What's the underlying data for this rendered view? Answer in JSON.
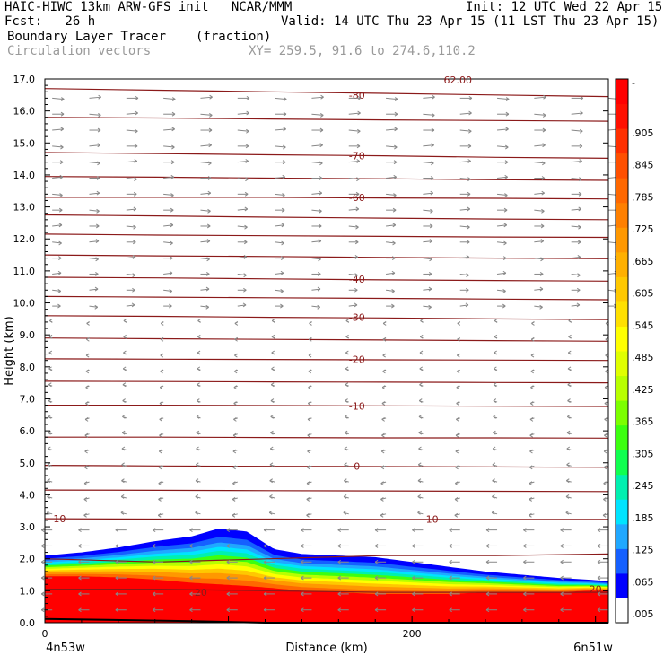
{
  "header": {
    "line1_left": "HAIC-HIWC 13km ARW-GFS init   NCAR/MMM",
    "line1_right": "Init: 12 UTC Wed 22 Apr 15",
    "line2_left": "Fcst:   26 h",
    "line2_right": "Valid: 14 UTC Thu 23 Apr 15 (11 LST Thu 23 Apr 15)",
    "line3_field": "Boundary Layer Tracer",
    "line3_units": "(fraction)",
    "line4_vectors": "Circulation vectors",
    "line4_xy": "XY= 259.5, 91.6 to 274.6,110.2"
  },
  "colors": {
    "contour": "#8b1a1a",
    "vector": "#888888",
    "bar_colors": [
      "#ffffff",
      "#0000ff",
      "#1560ff",
      "#20a8ff",
      "#00e4ff",
      "#00f0b0",
      "#10ff50",
      "#3cff10",
      "#7cff00",
      "#b8ff00",
      "#e0ff00",
      "#ffff00",
      "#ffe000",
      "#ffc800",
      "#ffb000",
      "#ff9800",
      "#ff8000",
      "#ff6800",
      "#ff5000",
      "#ff3000",
      "#ff1000",
      "#ff0000"
    ]
  },
  "chart_data": {
    "type": "heatmap",
    "title": "Boundary Layer Tracer",
    "units": "(fraction)",
    "xlabel": "Distance (km)",
    "ylabel": "Height (km)",
    "xlim": [
      0,
      307
    ],
    "ylim": [
      0,
      17
    ],
    "x_ticks": [
      0,
      200
    ],
    "x_tick_labels": [
      "0",
      "200"
    ],
    "x_end_labels": [
      "4n53w",
      "6n51w"
    ],
    "y_ticks": [
      0,
      1,
      2,
      3,
      4,
      5,
      6,
      7,
      8,
      9,
      10,
      11,
      12,
      13,
      14,
      15,
      16,
      17
    ],
    "y_tick_labels": [
      "0.0",
      "1.0",
      "2.0",
      "3.0",
      "4.0",
      "5.0",
      "6.0",
      "7.0",
      "8.0",
      "9.0",
      "10.0",
      "11.0",
      "12.0",
      "13.0",
      "14.0",
      "15.0",
      "16.0",
      "17.0"
    ],
    "colorbar_labels": [
      ".005",
      ".065",
      ".125",
      ".185",
      ".245",
      ".305",
      ".365",
      ".425",
      ".485",
      ".545",
      ".605",
      ".665",
      ".725",
      ".785",
      ".845",
      ".905",
      "-"
    ],
    "tracer_top_profile": {
      "x": [
        0,
        20,
        40,
        60,
        80,
        95,
        110,
        125,
        140,
        160,
        180,
        200,
        220,
        240,
        260,
        280,
        295,
        307
      ],
      "top_km": [
        2.1,
        2.2,
        2.35,
        2.55,
        2.7,
        2.95,
        2.85,
        2.3,
        2.15,
        2.1,
        2.05,
        1.9,
        1.75,
        1.6,
        1.5,
        1.4,
        1.35,
        1.3
      ],
      "red_km": [
        1.45,
        1.45,
        1.42,
        1.35,
        1.25,
        1.2,
        1.15,
        1.08,
        1.0,
        0.95,
        0.9,
        0.9,
        0.9,
        0.95,
        0.95,
        0.95,
        1.0,
        1.0
      ]
    },
    "contours": [
      {
        "label": "-80",
        "y": [
          16.7,
          16.65,
          16.6,
          16.55,
          16.5,
          16.45
        ]
      },
      {
        "label": "",
        "y": [
          15.8,
          15.78,
          15.75,
          15.72,
          15.7,
          15.68
        ]
      },
      {
        "label": "-70",
        "y": [
          14.7,
          14.67,
          14.63,
          14.6,
          14.55,
          14.52
        ]
      },
      {
        "label": "",
        "y": [
          13.95,
          13.93,
          13.9,
          13.88,
          13.85,
          13.83
        ]
      },
      {
        "label": "-60",
        "y": [
          13.3,
          13.3,
          13.3,
          13.28,
          13.27,
          13.25
        ]
      },
      {
        "label": "",
        "y": [
          12.75,
          12.72,
          12.68,
          12.65,
          12.62,
          12.6
        ]
      },
      {
        "label": "",
        "y": [
          12.15,
          12.12,
          12.1,
          12.08,
          12.06,
          12.05
        ]
      },
      {
        "label": "",
        "y": [
          11.5,
          11.47,
          11.45,
          11.42,
          11.4,
          11.38
        ]
      },
      {
        "label": "-40",
        "y": [
          10.8,
          10.78,
          10.75,
          10.72,
          10.7,
          10.68
        ]
      },
      {
        "label": "",
        "y": [
          10.2,
          10.18,
          10.16,
          10.14,
          10.12,
          10.1
        ]
      },
      {
        "label": "-30",
        "y": [
          9.6,
          9.58,
          9.55,
          9.53,
          9.5,
          9.48
        ]
      },
      {
        "label": "",
        "y": [
          8.9,
          8.88,
          8.86,
          8.84,
          8.82,
          8.8
        ]
      },
      {
        "label": "-20",
        "y": [
          8.25,
          8.24,
          8.23,
          8.22,
          8.21,
          8.2
        ]
      },
      {
        "label": "",
        "y": [
          7.55,
          7.54,
          7.53,
          7.52,
          7.51,
          7.5
        ]
      },
      {
        "label": "-10",
        "y": [
          6.8,
          6.8,
          6.79,
          6.78,
          6.77,
          6.76
        ]
      },
      {
        "label": "",
        "y": [
          5.8,
          5.8,
          5.79,
          5.78,
          5.78,
          5.77
        ]
      },
      {
        "label": "0",
        "y": [
          4.92,
          4.9,
          4.89,
          4.88,
          4.87,
          4.86
        ]
      },
      {
        "label": "",
        "y": [
          4.15,
          4.14,
          4.13,
          4.12,
          4.11,
          4.1
        ]
      },
      {
        "label": "10",
        "y": [
          3.25,
          3.24,
          3.24,
          3.23,
          3.23,
          3.23
        ]
      },
      {
        "label": "",
        "y": [
          2.0,
          1.9,
          2.0,
          2.1,
          2.1,
          2.15
        ]
      },
      {
        "label": "20",
        "y": [
          1.05,
          1.05,
          1.0,
          0.95,
          0.95,
          0.95
        ]
      }
    ],
    "contour_label_positions": [
      {
        "label": "-80",
        "x": 170,
        "y": 16.5
      },
      {
        "label": "-70",
        "x": 170,
        "y": 14.6
      },
      {
        "label": "-60",
        "x": 170,
        "y": 13.3
      },
      {
        "label": "-40",
        "x": 170,
        "y": 10.75
      },
      {
        "label": "-30",
        "x": 170,
        "y": 9.55
      },
      {
        "label": "-20",
        "x": 170,
        "y": 8.23
      },
      {
        "label": "-10",
        "x": 170,
        "y": 6.78
      },
      {
        "label": "0",
        "x": 170,
        "y": 4.9
      },
      {
        "label": "10",
        "x": 8,
        "y": 3.25
      },
      {
        "label": "10",
        "x": 211,
        "y": 3.24
      },
      {
        "label": "20",
        "x": 85,
        "y": 0.95
      },
      {
        "label": "20",
        "x": 300,
        "y": 1.05
      }
    ],
    "top_marker_label": "62.00"
  }
}
